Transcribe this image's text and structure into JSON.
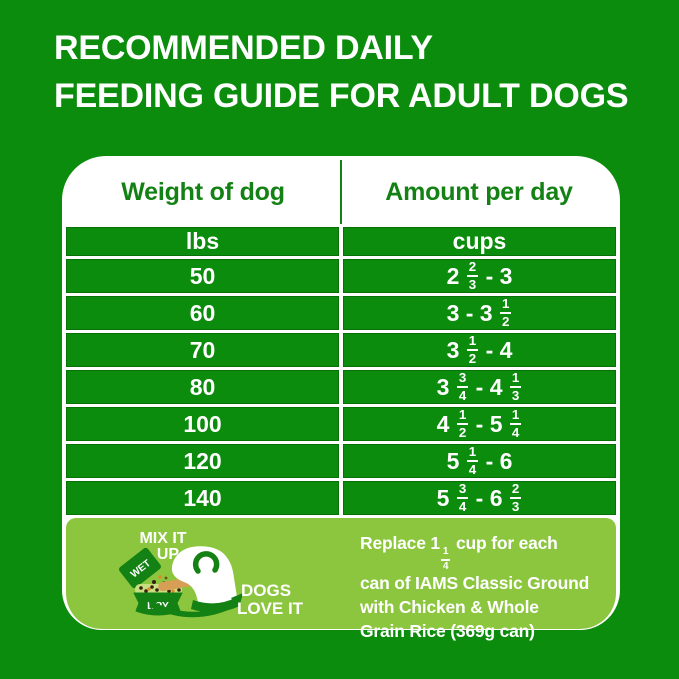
{
  "title": {
    "line1": "RECOMMENDED DAILY",
    "line2": "FEEDING GUIDE FOR ADULT DOGS"
  },
  "table": {
    "columns": {
      "weight": "Weight of dog",
      "amount": "Amount per day"
    },
    "units": {
      "weight": "lbs",
      "amount": "cups"
    },
    "rows": [
      {
        "weight": "50",
        "amount": [
          "2 ",
          "2/3",
          " - 3"
        ]
      },
      {
        "weight": "60",
        "amount": [
          "3 - 3 ",
          "1/2"
        ]
      },
      {
        "weight": "70",
        "amount": [
          "3 ",
          "1/2",
          " - 4"
        ]
      },
      {
        "weight": "80",
        "amount": [
          "3 ",
          "3/4",
          " - 4 ",
          "1/3"
        ]
      },
      {
        "weight": "100",
        "amount": [
          "4 ",
          "1/2",
          " - 5 ",
          "1/4"
        ]
      },
      {
        "weight": "120",
        "amount": [
          "5 ",
          "1/4",
          " - 6"
        ]
      },
      {
        "weight": "140",
        "amount": [
          "5 ",
          "3/4",
          " - 6 ",
          "2/3"
        ]
      }
    ]
  },
  "footer": {
    "graphic": {
      "mix_line1": "MIX IT",
      "mix_line2": "UP",
      "wet_label": "WET",
      "dry_label": "DRY",
      "dogs_line1": "DOGS",
      "dogs_line2": "LOVE IT"
    },
    "note_lines": [
      [
        "Replace 1",
        "1/4",
        " cup for each"
      ],
      [
        "can of IAMS Classic Ground"
      ],
      [
        "with Chicken & Whole"
      ],
      [
        "Grain Rice (369g can)"
      ]
    ]
  },
  "colors": {
    "brand_green": "#0C8C0C",
    "dark_green": "#148114",
    "lime": "#8CC63E",
    "white": "#FFFFFF",
    "tongue_tan": "#D79E56",
    "kibble_orange": "#E08A28",
    "kibble_dark": "#33230F",
    "kibble_strip": "#C9DE7E"
  }
}
